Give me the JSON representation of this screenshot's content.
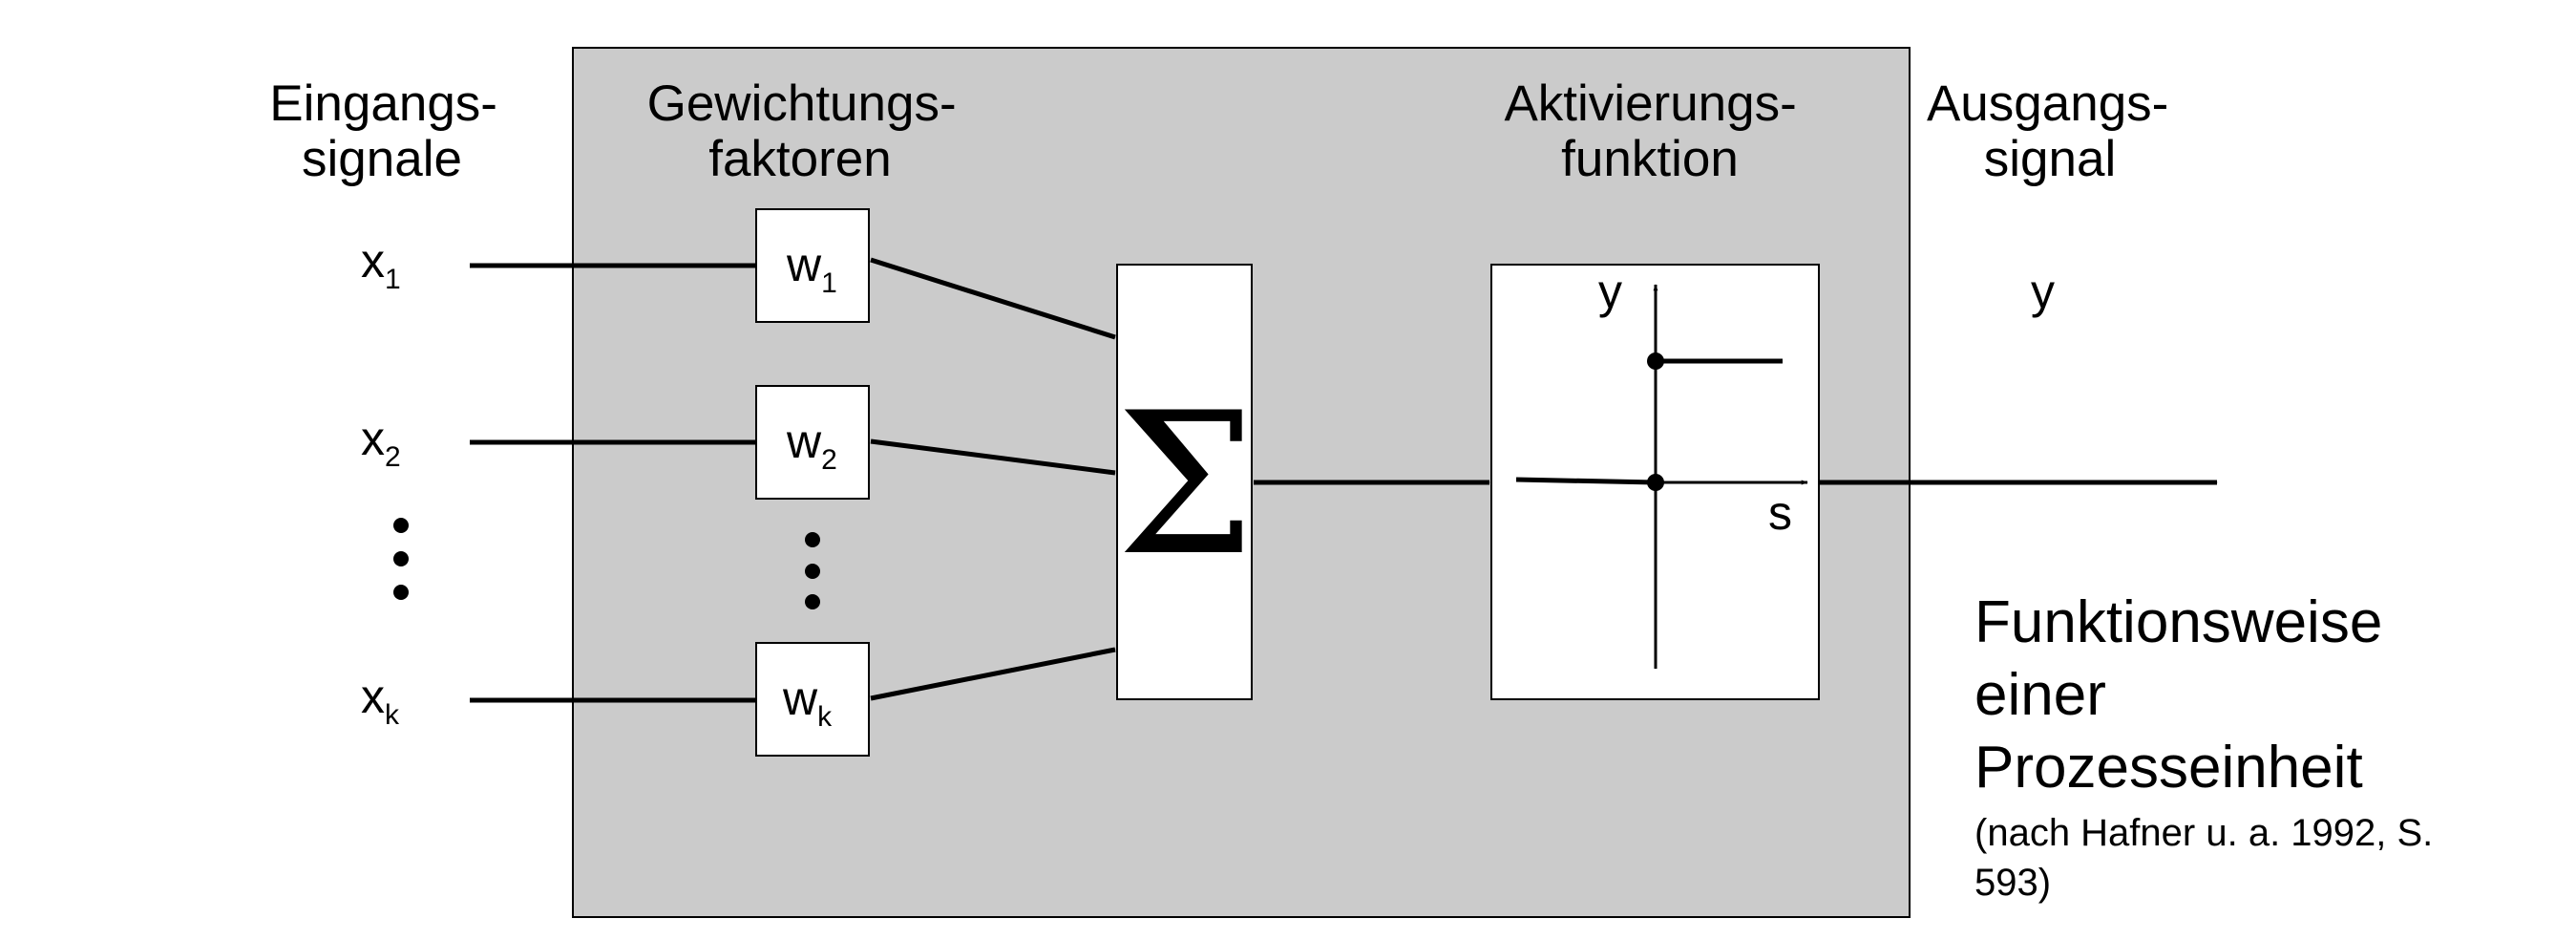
{
  "headers": {
    "inputs": [
      "Eingangs-",
      "signale"
    ],
    "weights": [
      "Gewichtungs-",
      "faktoren"
    ],
    "activation": [
      "Aktivierungs-",
      "funktion"
    ],
    "output": [
      "Ausgangs-",
      "signal"
    ]
  },
  "inputs": [
    {
      "symbol": "x",
      "index": "1"
    },
    {
      "symbol": "x",
      "index": "2"
    },
    {
      "symbol": "x",
      "index": "k"
    }
  ],
  "weights": [
    {
      "symbol": "w",
      "index": "1"
    },
    {
      "symbol": "w",
      "index": "2"
    },
    {
      "symbol": "w",
      "index": "k"
    }
  ],
  "summation": {
    "symbol": "Σ"
  },
  "activation_plot": {
    "y_label": "y",
    "x_label": "s",
    "type": "step"
  },
  "output": {
    "symbol": "y"
  },
  "caption": {
    "title": "Funktionsweise\neiner\nProzesseinheit",
    "source": "(nach Hafner u. a. 1992, S. 593)"
  },
  "colors": {
    "panel": "#cbcbcb",
    "stroke": "#000000",
    "box": "#ffffff"
  }
}
